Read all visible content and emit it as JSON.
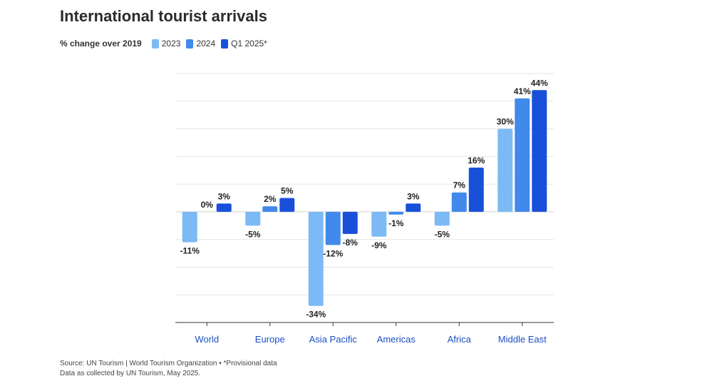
{
  "chart_data": {
    "type": "bar",
    "title": "International tourist arrivals",
    "legend_title": "% change over 2019",
    "categories": [
      "World",
      "Europe",
      "Asia Pacific",
      "Americas",
      "Africa",
      "Middle East"
    ],
    "series": [
      {
        "name": "2023",
        "color": "#7cbaf5",
        "values": [
          -11,
          -5,
          -34,
          -9,
          -5,
          30
        ],
        "labels": [
          "-11%",
          "-5%",
          "-34%",
          "-9%",
          "-5%",
          "30%"
        ]
      },
      {
        "name": "2024",
        "color": "#4189ea",
        "values": [
          0,
          2,
          -12,
          -1,
          7,
          41
        ],
        "labels": [
          "0%",
          "2%",
          "-12%",
          "-1%",
          "7%",
          "41%"
        ]
      },
      {
        "name": "Q1 2025*",
        "color": "#1850d9",
        "values": [
          3,
          5,
          -8,
          3,
          16,
          44
        ],
        "labels": [
          "3%",
          "5%",
          "-8%",
          "3%",
          "16%",
          "44%"
        ]
      }
    ],
    "ylim": [
      -40,
      50
    ],
    "grid": true,
    "legend_position": "top-left",
    "category_label_color": "#1a4fc4",
    "source_line1": "Source: UN Tourism | World Tourism Organization • *Provisional data",
    "source_line2": "Data as collected by UN Tourism, May 2025."
  }
}
